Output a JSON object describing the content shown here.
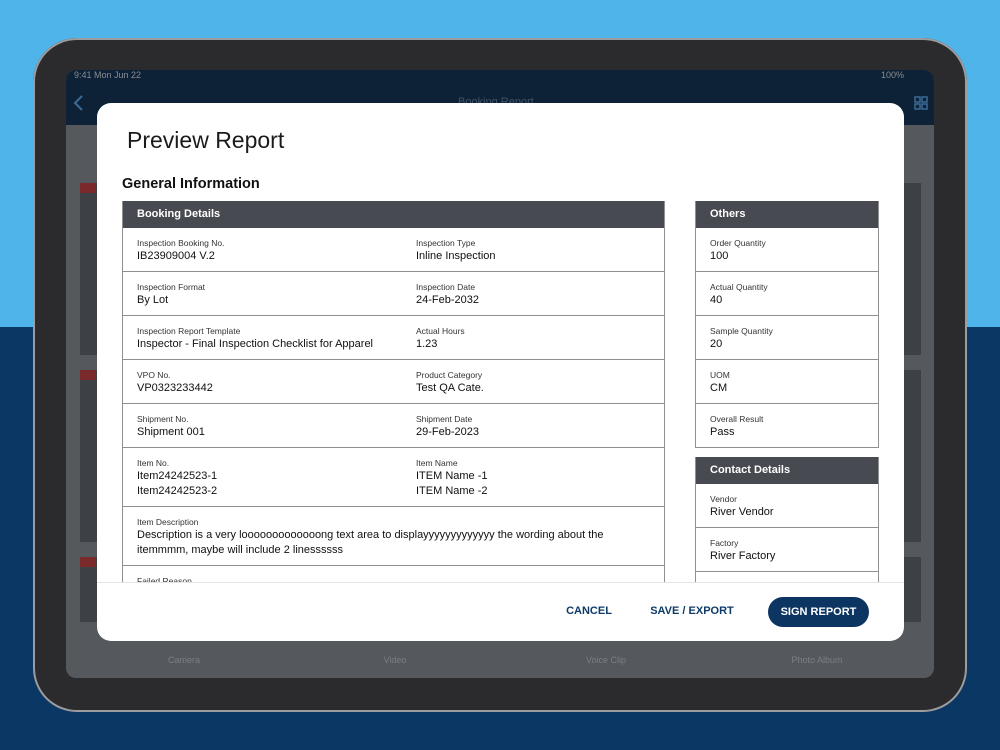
{
  "status_bar": {
    "time": "9:41 Mon Jun 22",
    "battery": "100%"
  },
  "background_app": {
    "title": "Booking Report",
    "tabs": [
      "Camera",
      "Video",
      "Voice Clip",
      "Photo Album"
    ]
  },
  "modal": {
    "title": "Preview Report",
    "section": "General Information",
    "booking_details": {
      "title": "Booking Details",
      "rows": [
        [
          {
            "label": "Inspection Booking No.",
            "value": [
              "IB23909004 V.2"
            ]
          },
          {
            "label": "Inspection Type",
            "value": [
              "Inline Inspection"
            ]
          }
        ],
        [
          {
            "label": "Inspection Format",
            "value": [
              "By Lot"
            ]
          },
          {
            "label": "Inspection Date",
            "value": [
              "24-Feb-2032"
            ]
          }
        ],
        [
          {
            "label": "Inspection Report Template",
            "value": [
              "Inspector - Final Inspection Checklist for Apparel"
            ]
          },
          {
            "label": "Actual Hours",
            "value": [
              "1.23"
            ]
          }
        ],
        [
          {
            "label": "VPO No.",
            "value": [
              "VP0323233442"
            ]
          },
          {
            "label": "Product Category",
            "value": [
              "Test QA Cate."
            ]
          }
        ],
        [
          {
            "label": "Shipment No.",
            "value": [
              "Shipment 001"
            ]
          },
          {
            "label": "Shipment Date",
            "value": [
              "29-Feb-2023"
            ]
          }
        ],
        [
          {
            "label": "Item No.",
            "value": [
              "Item24242523-1",
              "Item24242523-2"
            ]
          },
          {
            "label": "Item Name",
            "value": [
              "ITEM Name -1",
              "ITEM Name -2"
            ]
          }
        ],
        [
          {
            "label": "Item Description",
            "value": [
              "Description is a very looooooooooooong text area to displayyyyyyyyyyyyy the wording about the itemmmm, maybe will include 2 linessssss"
            ]
          }
        ],
        [
          {
            "label": "Failed Reason",
            "value": []
          }
        ]
      ]
    },
    "others": {
      "title": "Others",
      "rows": [
        {
          "label": "Order Quantity",
          "value": "100"
        },
        {
          "label": "Actual Quantity",
          "value": "40"
        },
        {
          "label": "Sample Quantity",
          "value": "20"
        },
        {
          "label": "UOM",
          "value": "CM"
        },
        {
          "label": "Overall Result",
          "value": "Pass"
        }
      ]
    },
    "contact_details": {
      "title": "Contact Details",
      "rows": [
        {
          "label": "Vendor",
          "value": "River Vendor"
        },
        {
          "label": "Factory",
          "value": "River Factory"
        },
        {
          "label": "",
          "value": ""
        }
      ]
    },
    "actions": {
      "cancel": "CANCEL",
      "save": "SAVE / EXPORT",
      "sign": "SIGN REPORT"
    }
  }
}
